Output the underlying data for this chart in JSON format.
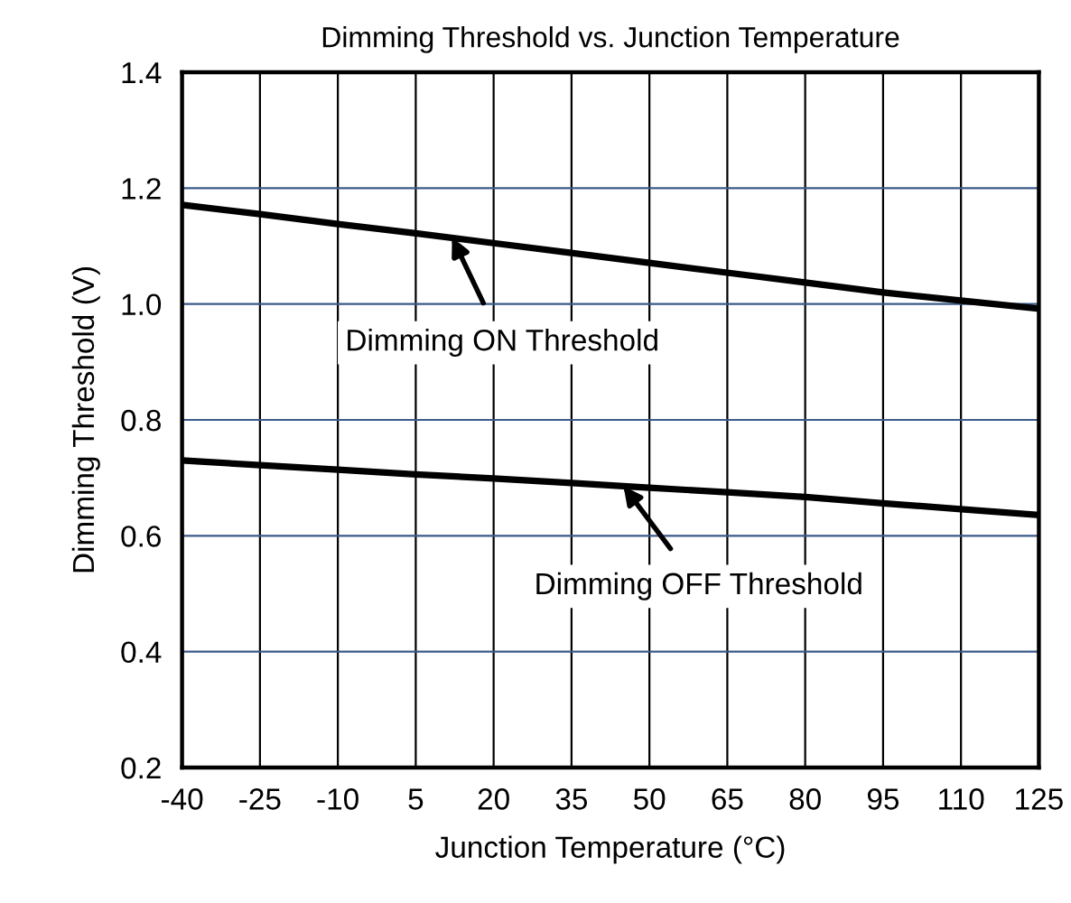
{
  "chart_data": {
    "type": "line",
    "title": "Dimming Threshold vs. Junction Temperature",
    "xlabel": "Junction Temperature (°C)",
    "ylabel": "Dimming Threshold (V)",
    "x": [
      -40,
      -25,
      -10,
      5,
      20,
      35,
      50,
      65,
      80,
      95,
      110,
      125
    ],
    "series": [
      {
        "color": "#000000",
        "values": [
          1.171,
          1.155,
          1.138,
          1.122,
          1.105,
          1.088,
          1.071,
          1.054,
          1.037,
          1.02,
          1.006,
          0.992
        ]
      },
      {
        "color": "#000000",
        "values": [
          0.73,
          0.722,
          0.714,
          0.706,
          0.699,
          0.691,
          0.683,
          0.675,
          0.667,
          0.656,
          0.646,
          0.636
        ]
      }
    ],
    "xlim": [
      -40,
      125
    ],
    "xticks": [
      -40,
      -25,
      -10,
      5,
      20,
      35,
      50,
      65,
      80,
      95,
      110,
      125
    ],
    "ylim": [
      0.2,
      1.4
    ],
    "yticks": [
      {
        "value": 0.2,
        "label": "0.2"
      },
      {
        "value": 0.4,
        "label": "0.4"
      },
      {
        "value": 0.6,
        "label": "0.6"
      },
      {
        "value": 0.8,
        "label": "0.8"
      },
      {
        "value": 1.0,
        "label": "1.0"
      },
      {
        "value": 1.2,
        "label": "1.2"
      },
      {
        "value": 1.4,
        "label": "1.4"
      }
    ],
    "grid": true,
    "legend": false,
    "marker": "none",
    "line_style": "solid",
    "annotations": [
      {
        "text": "Dimming ON Threshold",
        "x": 12,
        "y": 1.115
      },
      {
        "text": "Dimming OFF Threshold",
        "x": 45,
        "y": 0.686
      }
    ]
  }
}
